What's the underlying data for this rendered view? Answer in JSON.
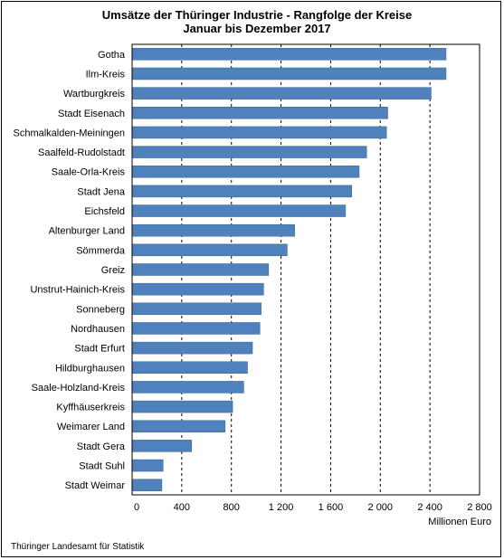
{
  "chart_data": {
    "type": "bar",
    "orientation": "horizontal",
    "title": "Umsätze der Thüringer Industrie - Rangfolge der Kreise",
    "subtitle": "Januar bis Dezember 2017",
    "xlabel": "Millionen Euro",
    "source": "Thüringer Landesamt für Statistik",
    "xlim": [
      0,
      2800
    ],
    "xticks": [
      0,
      400,
      800,
      1200,
      1600,
      2000,
      2400,
      2800
    ],
    "xtick_labels": [
      "0",
      "400",
      "800",
      "1 200",
      "1 600",
      "2 000",
      "2 400",
      "2 800"
    ],
    "grid": "vertical dashed",
    "bar_color": "#4f81bd",
    "categories": [
      "Gotha",
      "Ilm-Kreis",
      "Wartburgkreis",
      "Stadt Eisenach",
      "Schmalkalden-Meiningen",
      "Saalfeld-Rudolstadt",
      "Saale-Orla-Kreis",
      "Stadt Jena",
      "Eichsfeld",
      "Altenburger Land",
      "Sömmerda",
      "Greiz",
      "Unstrut-Hainich-Kreis",
      "Sonneberg",
      "Nordhausen",
      "Stadt Erfurt",
      "Hildburghausen",
      "Saale-Holzland-Kreis",
      "Kyffhäuserkreis",
      "Weimarer Land",
      "Stadt Gera",
      "Stadt Suhl",
      "Stadt Weimar"
    ],
    "values": [
      2530,
      2530,
      2410,
      2060,
      2050,
      1890,
      1830,
      1770,
      1720,
      1310,
      1250,
      1100,
      1060,
      1040,
      1030,
      970,
      930,
      900,
      810,
      750,
      480,
      250,
      240
    ]
  }
}
